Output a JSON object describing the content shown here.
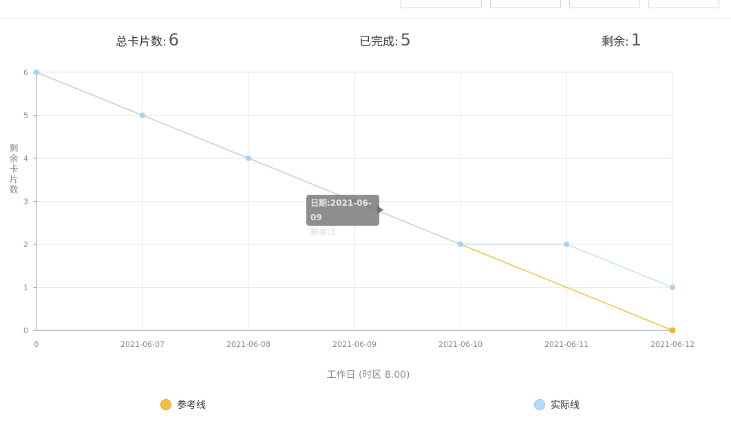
{
  "stats": {
    "total_label": "总卡片数:",
    "total_value": "6",
    "done_label": "已完成:",
    "done_value": "5",
    "remain_label": "剩余:",
    "remain_value": "1"
  },
  "tooltip": {
    "date_line": "日期:2021-06-09",
    "remain_line": "剩余:3"
  },
  "legend": {
    "reference_label": "参考线",
    "actual_label": "实际线"
  },
  "chart_data": {
    "type": "line",
    "categories": [
      "0",
      "2021-06-07",
      "2021-06-08",
      "2021-06-09",
      "2021-06-10",
      "2021-06-11",
      "2021-06-12"
    ],
    "series": [
      {
        "name": "参考线",
        "values": [
          6,
          5,
          4,
          3,
          2,
          1,
          0
        ],
        "color": "#f0c040"
      },
      {
        "name": "实际线",
        "values": [
          6,
          5,
          4,
          3,
          2,
          2,
          1
        ],
        "color": "#a8d0f0"
      }
    ],
    "xlabel": "工作日  (时区 8.00)",
    "ylabel": "剩余卡片数",
    "ylim": [
      0,
      6
    ],
    "yticks": [
      0,
      1,
      2,
      3,
      4,
      5,
      6
    ],
    "grid": true,
    "legend_position": "bottom"
  }
}
